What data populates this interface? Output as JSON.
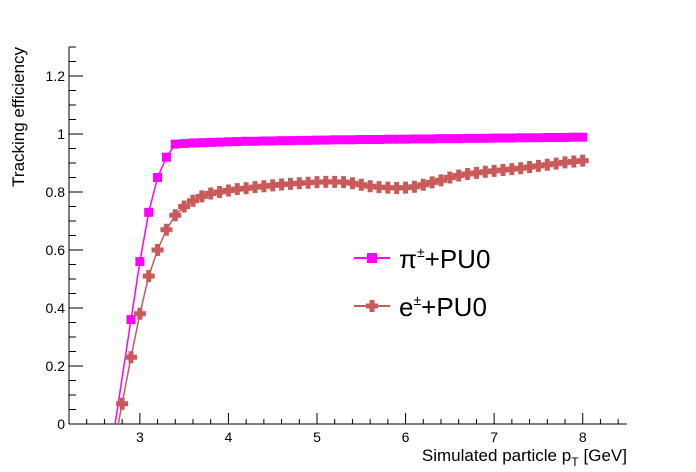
{
  "chart_data": {
    "type": "line",
    "title": "",
    "xlabel": "Simulated particle p",
    "xlabel_sub": "T",
    "xlabel_unit": "[GeV]",
    "ylabel": "Tracking efficiency",
    "xlim": [
      2.2,
      8.5
    ],
    "ylim": [
      0,
      1.3
    ],
    "x_tick_labels": [
      "3",
      "4",
      "5",
      "6",
      "7",
      "8"
    ],
    "y_tick_labels": [
      "0",
      "0.2",
      "0.4",
      "0.6",
      "0.8",
      "1",
      "1.2"
    ],
    "legend_position": "center-right",
    "series": [
      {
        "name": "π±+PU0",
        "legend_main": "π",
        "legend_sup": "±",
        "legend_tail": "+PU0",
        "color": "#ff00ff",
        "marker": "square",
        "x": [
          2.9,
          3.0,
          3.1,
          3.2,
          3.3,
          3.4,
          3.5,
          3.6,
          3.7,
          3.8,
          3.9,
          4.0,
          4.1,
          4.2,
          4.3,
          4.4,
          4.5,
          4.6,
          4.7,
          4.8,
          4.9,
          5.0,
          5.1,
          5.2,
          5.3,
          5.4,
          5.5,
          5.6,
          5.7,
          5.8,
          5.9,
          6.0,
          6.1,
          6.2,
          6.3,
          6.4,
          6.5,
          6.6,
          6.7,
          6.8,
          6.9,
          7.0,
          7.1,
          7.2,
          7.3,
          7.4,
          7.5,
          7.6,
          7.7,
          7.8,
          7.9,
          8.0
        ],
        "y": [
          0.36,
          0.56,
          0.73,
          0.85,
          0.92,
          0.965,
          0.967,
          0.969,
          0.97,
          0.971,
          0.972,
          0.973,
          0.974,
          0.975,
          0.975,
          0.976,
          0.976,
          0.977,
          0.977,
          0.978,
          0.978,
          0.979,
          0.979,
          0.98,
          0.98,
          0.98,
          0.981,
          0.981,
          0.981,
          0.982,
          0.982,
          0.982,
          0.983,
          0.983,
          0.983,
          0.984,
          0.984,
          0.984,
          0.985,
          0.985,
          0.985,
          0.986,
          0.986,
          0.986,
          0.987,
          0.987,
          0.987,
          0.988,
          0.988,
          0.988,
          0.989,
          0.989
        ]
      },
      {
        "name": "e±+PU0",
        "legend_main": "e",
        "legend_sup": "±",
        "legend_tail": "+PU0",
        "color": "#c85a5a",
        "marker": "cross",
        "x": [
          2.8,
          2.9,
          3.0,
          3.1,
          3.2,
          3.3,
          3.4,
          3.5,
          3.6,
          3.7,
          3.8,
          3.9,
          4.0,
          4.1,
          4.2,
          4.3,
          4.4,
          4.5,
          4.6,
          4.7,
          4.8,
          4.9,
          5.0,
          5.1,
          5.2,
          5.3,
          5.4,
          5.5,
          5.6,
          5.7,
          5.8,
          5.9,
          6.0,
          6.1,
          6.2,
          6.3,
          6.4,
          6.5,
          6.6,
          6.7,
          6.8,
          6.9,
          7.0,
          7.1,
          7.2,
          7.3,
          7.4,
          7.5,
          7.6,
          7.7,
          7.8,
          7.9,
          8.0
        ],
        "y": [
          0.07,
          0.23,
          0.38,
          0.51,
          0.6,
          0.67,
          0.72,
          0.75,
          0.77,
          0.785,
          0.795,
          0.8,
          0.805,
          0.81,
          0.813,
          0.817,
          0.82,
          0.823,
          0.826,
          0.828,
          0.83,
          0.832,
          0.834,
          0.835,
          0.835,
          0.834,
          0.83,
          0.825,
          0.82,
          0.817,
          0.815,
          0.814,
          0.815,
          0.818,
          0.825,
          0.833,
          0.84,
          0.85,
          0.857,
          0.862,
          0.866,
          0.87,
          0.873,
          0.876,
          0.879,
          0.882,
          0.886,
          0.89,
          0.894,
          0.898,
          0.902,
          0.905,
          0.908
        ]
      }
    ]
  }
}
